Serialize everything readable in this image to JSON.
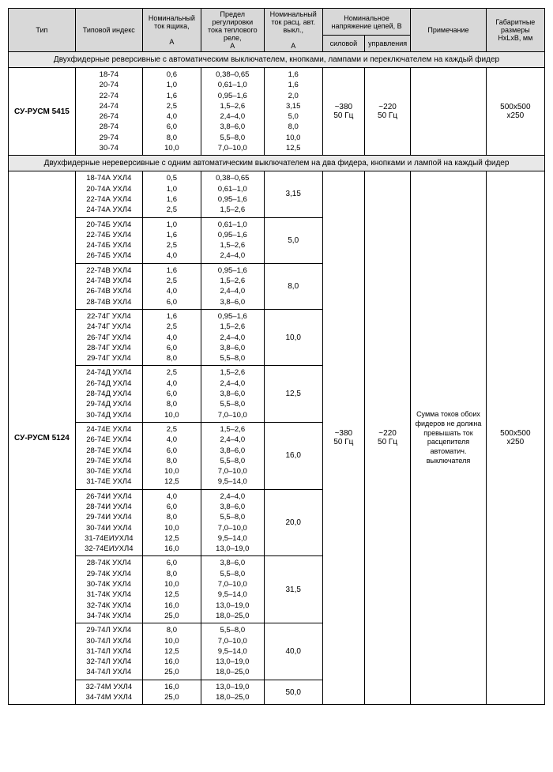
{
  "columns": {
    "type": "Тип",
    "index": "Типовой индекс",
    "nom_box": "Номинальный ток ящика,",
    "nom_box_unit": "А",
    "reg_limit": "Предел регулировки тока теплового реле,",
    "reg_limit_unit": "А",
    "nom_break": "Номинальный ток расц. авт. выкл.,",
    "nom_break_unit": "А",
    "nom_voltage": "Номинальное напряжение цепей, В",
    "power": "силовой",
    "control": "управления",
    "note": "Примечание",
    "dim": "Габаритные размеры HxLxB, мм"
  },
  "section1": "Двухфидерные реверсивные с автоматическим выключателем, кнопками, лампами и переключателем на каждый фидер",
  "section2": "Двухфидерные нереверсивные с одним автоматическим выключателем на два фидера, кнопками и лампой на каждый фидер",
  "type1": "СУ-РУСМ 5415",
  "type2": "СУ-РУСМ 5124",
  "power_val": "~380\n50 Гц",
  "control_val": "~220\n50 Гц",
  "dim_val": "500х500\nх250",
  "note2": "Сумма токов обоих фидеров не должна превышать ток расцепителя автоматич. выключателя",
  "row1": {
    "idx": [
      "18-74",
      "20-74",
      "22-74",
      "24-74",
      "26-74",
      "28-74",
      "29-74",
      "30-74"
    ],
    "cur": [
      "0,6",
      "1,0",
      "1,6",
      "2,5",
      "4,0",
      "6,0",
      "8,0",
      "10,0"
    ],
    "reg": [
      "0,38–0,65",
      "0,61–1,0",
      "0,95–1,6",
      "1,5–2,6",
      "2,4–4,0",
      "3,8–6,0",
      "5,5–8,0",
      "7,0–10,0"
    ],
    "brk": [
      "1,6",
      "1,6",
      "2,0",
      "3,15",
      "5,0",
      "8,0",
      "10,0",
      "12,5"
    ]
  },
  "g2": [
    {
      "brk": "3,15",
      "idx": [
        "18-74А УХЛ4",
        "20-74А УХЛ4",
        "22-74А УХЛ4",
        "24-74А УХЛ4"
      ],
      "cur": [
        "0,5",
        "1,0",
        "1,6",
        "2,5"
      ],
      "reg": [
        "0,38–0,65",
        "0,61–1,0",
        "0,95–1,6",
        "1,5–2,6"
      ]
    },
    {
      "brk": "5,0",
      "idx": [
        "20-74Б УХЛ4",
        "22-74Б УХЛ4",
        "24-74Б УХЛ4",
        "26-74Б УХЛ4"
      ],
      "cur": [
        "1,0",
        "1,6",
        "2,5",
        "4,0"
      ],
      "reg": [
        "0,61–1,0",
        "0,95–1,6",
        "1,5–2,6",
        "2,4–4,0"
      ]
    },
    {
      "brk": "8,0",
      "idx": [
        "22-74В УХЛ4",
        "24-74В УХЛ4",
        "26-74В УХЛ4",
        "28-74В УХЛ4"
      ],
      "cur": [
        "1,6",
        "2,5",
        "4,0",
        "6,0"
      ],
      "reg": [
        "0,95–1,6",
        "1,5–2,6",
        "2,4–4,0",
        "3,8–6,0"
      ]
    },
    {
      "brk": "10,0",
      "idx": [
        "22-74Г УХЛ4",
        "24-74Г УХЛ4",
        "26-74Г УХЛ4",
        "28-74Г УХЛ4",
        "29-74Г УХЛ4"
      ],
      "cur": [
        "1,6",
        "2,5",
        "4,0",
        "6,0",
        "8,0"
      ],
      "reg": [
        "0,95–1,6",
        "1,5–2,6",
        "2,4–4,0",
        "3,8–6,0",
        "5,5–8,0"
      ]
    },
    {
      "brk": "12,5",
      "idx": [
        "24-74Д УХЛ4",
        "26-74Д УХЛ4",
        "28-74Д УХЛ4",
        "29-74Д УХЛ4",
        "30-74Д УХЛ4"
      ],
      "cur": [
        "2,5",
        "4,0",
        "6,0",
        "8,0",
        "10,0"
      ],
      "reg": [
        "1,5–2,6",
        "2,4–4,0",
        "3,8–6,0",
        "5,5–8,0",
        "7,0–10,0"
      ]
    },
    {
      "brk": "16,0",
      "idx": [
        "24-74Е УХЛ4",
        "26-74Е УХЛ4",
        "28-74Е УХЛ4",
        "29-74Е УХЛ4",
        "30-74Е УХЛ4",
        "31-74Е УХЛ4"
      ],
      "cur": [
        "2,5",
        "4,0",
        "6,0",
        "8,0",
        "10,0",
        "12,5"
      ],
      "reg": [
        "1,5–2,6",
        "2,4–4,0",
        "3,8–6,0",
        "5,5–8,0",
        "7,0–10,0",
        "9,5–14,0"
      ]
    },
    {
      "brk": "20,0",
      "idx": [
        "26-74И УХЛ4",
        "28-74И УХЛ4",
        "29-74И УХЛ4",
        "30-74И УХЛ4",
        "31-74ЕИУХЛ4",
        "32-74ЕИУХЛ4"
      ],
      "cur": [
        "4,0",
        "6,0",
        "8,0",
        "10,0",
        "12,5",
        "16,0"
      ],
      "reg": [
        "2,4–4,0",
        "3,8–6,0",
        "5,5–8,0",
        "7,0–10,0",
        "9,5–14,0",
        "13,0–19,0"
      ]
    },
    {
      "brk": "31,5",
      "idx": [
        "28-74К УХЛ4",
        "29-74К УХЛ4",
        "30-74К УХЛ4",
        "31-74К УХЛ4",
        "32-74К УХЛ4",
        "34-74К УХЛ4"
      ],
      "cur": [
        "6,0",
        "8,0",
        "10,0",
        "12,5",
        "16,0",
        "25,0"
      ],
      "reg": [
        "3,8–6,0",
        "5,5–8,0",
        "7,0–10,0",
        "9,5–14,0",
        "13,0–19,0",
        "18,0–25,0"
      ]
    },
    {
      "brk": "40,0",
      "idx": [
        "29-74Л УХЛ4",
        "30-74Л УХЛ4",
        "31-74Л УХЛ4",
        "32-74Л УХЛ4",
        "34-74Л УХЛ4"
      ],
      "cur": [
        "8,0",
        "10,0",
        "12,5",
        "16,0",
        "25,0"
      ],
      "reg": [
        "5,5–8,0",
        "7,0–10,0",
        "9,5–14,0",
        "13,0–19,0",
        "18,0–25,0"
      ]
    },
    {
      "brk": "50,0",
      "idx": [
        "32-74М УХЛ4",
        "34-74М УХЛ4"
      ],
      "cur": [
        "16,0",
        "25,0"
      ],
      "reg": [
        "13,0–19,0",
        "18,0–25,0"
      ]
    }
  ]
}
